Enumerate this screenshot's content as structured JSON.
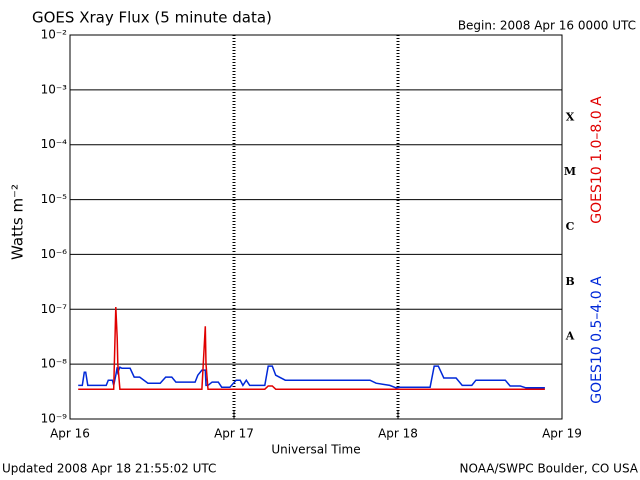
{
  "chart_data": {
    "type": "line",
    "title": "GOES Xray Flux (5 minute data)",
    "subtitle": "Begin:  2008 Apr 16 0000 UTC",
    "x_label": "Universal Time",
    "y_label": "Watts m⁻²",
    "footer_left": "Updated 2008 Apr 18 21:55:02 UTC",
    "footer_right": "NOAA/SWPC Boulder, CO USA",
    "class_labels": [
      "X",
      "M",
      "C",
      "B",
      "A"
    ],
    "ylog": true,
    "grid": true,
    "xlim": [
      0,
      72
    ],
    "xticks": [
      {
        "value": 0,
        "label": "Apr 16"
      },
      {
        "value": 24,
        "label": "Apr 17"
      },
      {
        "value": 48,
        "label": "Apr 18"
      },
      {
        "value": 72,
        "label": "Apr 19"
      }
    ],
    "ylim": [
      1e-09,
      0.01
    ],
    "yticks": [
      {
        "value": 1e-09,
        "label": "10⁻⁹"
      },
      {
        "value": 1e-08,
        "label": "10⁻⁸"
      },
      {
        "value": 1e-07,
        "label": "10⁻⁷"
      },
      {
        "value": 1e-06,
        "label": "10⁻⁶"
      },
      {
        "value": 1e-05,
        "label": "10⁻⁵"
      },
      {
        "value": 0.0001,
        "label": "10⁻⁴"
      },
      {
        "value": 0.001,
        "label": "10⁻³"
      },
      {
        "value": 0.01,
        "label": "10⁻²"
      }
    ],
    "x": [
      1.2,
      1.8,
      2.1,
      2.3,
      2.6,
      5.3,
      5.6,
      6.2,
      6.4,
      6.7,
      6.9,
      7.0,
      7.3,
      7.6,
      8.8,
      9.4,
      10.2,
      11.4,
      13.2,
      14.0,
      14.9,
      15.5,
      18.3,
      18.7,
      19.3,
      19.8,
      19.9,
      20.2,
      20.8,
      21.7,
      22.2,
      23.4,
      24.3,
      24.9,
      25.3,
      25.8,
      26.3,
      28.5,
      29.0,
      29.6,
      30.1,
      31.5,
      43.9,
      44.8,
      46.8,
      47.7,
      48.3,
      52.7,
      53.3,
      53.9,
      54.7,
      56.5,
      57.4,
      58.8,
      59.4,
      63.7,
      64.4,
      65.9,
      66.7,
      69.5
    ],
    "series": [
      {
        "name": "GOES10 1.0–8.0 A",
        "color": "#e00000",
        "values": [
          3.5e-09,
          3.5e-09,
          3.5e-09,
          3.5e-09,
          3.5e-09,
          3.5e-09,
          3.5e-09,
          3.5e-09,
          3.5e-09,
          1.1e-07,
          3e-08,
          1e-08,
          3.5e-09,
          3.5e-09,
          3.5e-09,
          3.5e-09,
          3.5e-09,
          3.5e-09,
          3.5e-09,
          3.5e-09,
          3.5e-09,
          3.5e-09,
          3.5e-09,
          3.5e-09,
          3.5e-09,
          4.9e-08,
          1e-08,
          3.5e-09,
          3.5e-09,
          3.5e-09,
          3.5e-09,
          3.5e-09,
          3.5e-09,
          3.5e-09,
          3.5e-09,
          3.5e-09,
          3.5e-09,
          3.5e-09,
          4e-09,
          4e-09,
          3.5e-09,
          3.5e-09,
          3.5e-09,
          3.5e-09,
          3.5e-09,
          3.5e-09,
          3.5e-09,
          3.5e-09,
          3.5e-09,
          3.5e-09,
          3.5e-09,
          3.5e-09,
          3.5e-09,
          3.5e-09,
          3.5e-09,
          3.5e-09,
          3.5e-09,
          3.5e-09,
          3.5e-09,
          3.5e-09
        ]
      },
      {
        "name": "GOES10 0.5–4.0 A",
        "color": "#0028d8",
        "values": [
          4.1e-09,
          4.1e-09,
          7.1e-09,
          7.1e-09,
          4.1e-09,
          4.1e-09,
          5.1e-09,
          5.1e-09,
          4.1e-09,
          6.3e-09,
          8.8e-09,
          7.1e-09,
          8.8e-09,
          8.4e-09,
          8.4e-09,
          5.8e-09,
          5.8e-09,
          4.5e-09,
          4.5e-09,
          5.8e-09,
          5.8e-09,
          4.7e-09,
          4.7e-09,
          6.3e-09,
          7.8e-09,
          7.8e-09,
          4.1e-09,
          4.1e-09,
          4.7e-09,
          4.7e-09,
          3.8e-09,
          3.8e-09,
          5.1e-09,
          5.1e-09,
          4.1e-09,
          5.1e-09,
          4.1e-09,
          4.1e-09,
          9.2e-09,
          9.2e-09,
          6.3e-09,
          5.1e-09,
          5.1e-09,
          4.5e-09,
          4.1e-09,
          3.7e-09,
          3.8e-09,
          3.8e-09,
          9.2e-09,
          9.2e-09,
          5.6e-09,
          5.6e-09,
          4.1e-09,
          4.1e-09,
          5.1e-09,
          5.1e-09,
          4e-09,
          4e-09,
          3.7e-09,
          3.7e-09
        ]
      }
    ]
  }
}
